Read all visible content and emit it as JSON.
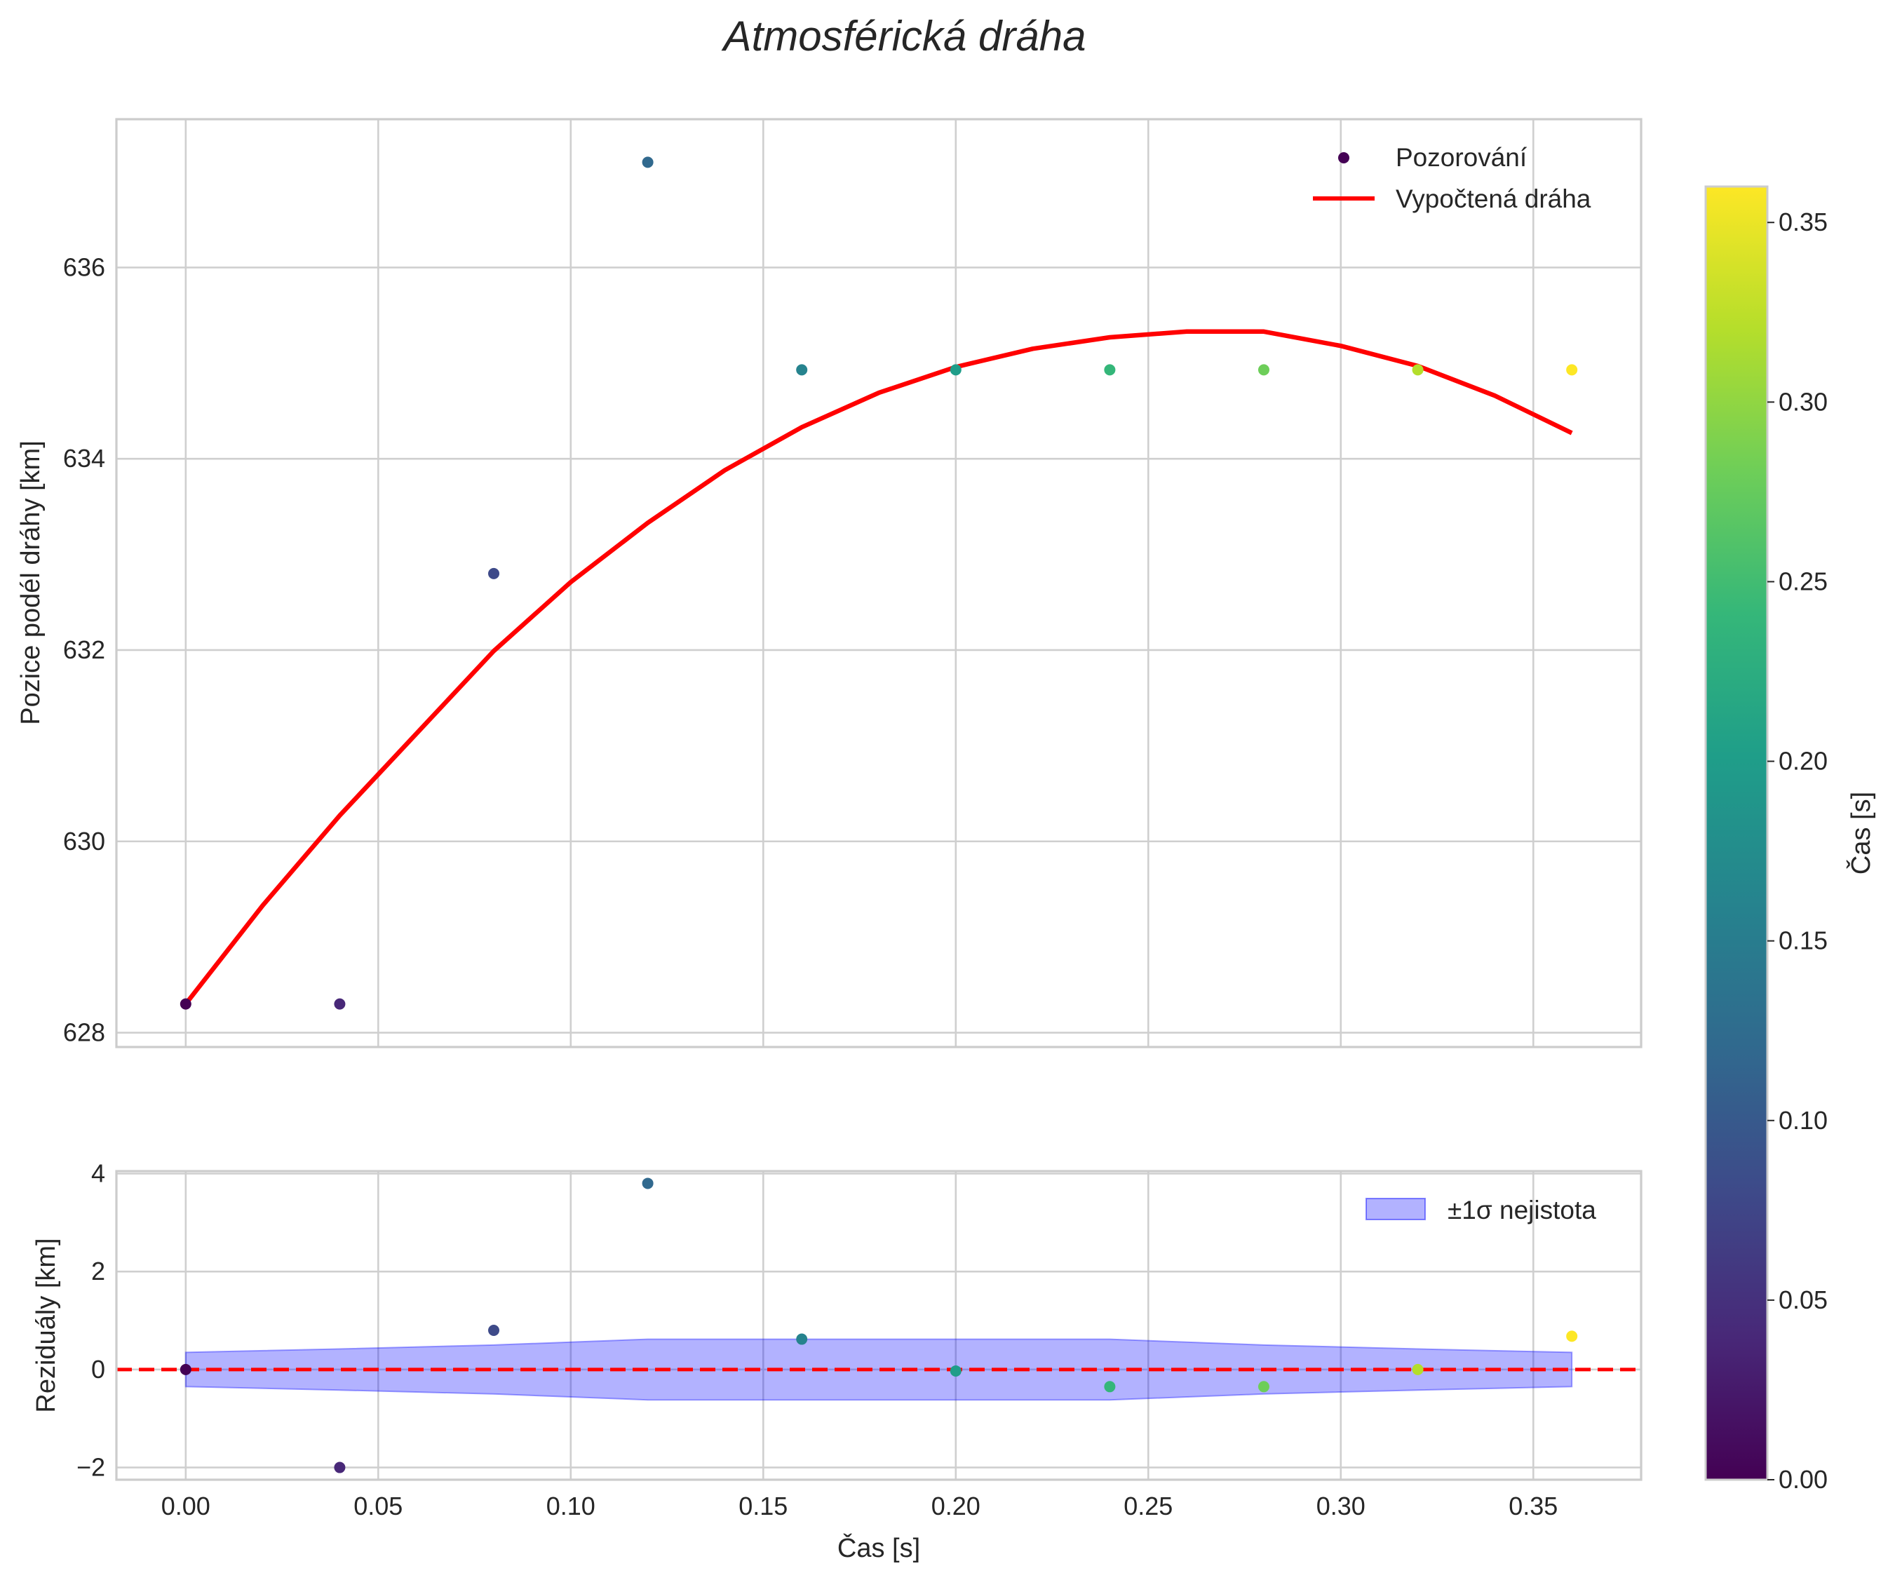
{
  "chart_data": [
    {
      "type": "scatter",
      "title": "Atmosférická dráha",
      "xlabel": "",
      "ylabel": "Pozice podél dráhy [km]",
      "xlim": [
        -0.018,
        0.378
      ],
      "ylim": [
        627.85,
        637.55
      ],
      "xticks": [
        0.0,
        0.05,
        0.1,
        0.15,
        0.2,
        0.25,
        0.3,
        0.35
      ],
      "yticks": [
        628,
        630,
        632,
        634,
        636
      ],
      "ytick_labels": [
        "628",
        "630",
        "632",
        "634",
        "636"
      ],
      "legend": [
        {
          "label": "Pozorování",
          "kind": "marker",
          "color": "#440154"
        },
        {
          "label": "Vypočtená dráha",
          "kind": "line",
          "color": "#ff0000"
        }
      ],
      "series": [
        {
          "name": "Pozorování",
          "x": [
            0.0,
            0.04,
            0.08,
            0.12,
            0.16,
            0.2,
            0.24,
            0.28,
            0.32,
            0.36
          ],
          "y": [
            628.3,
            628.3,
            632.8,
            637.1,
            634.93,
            634.93,
            634.93,
            634.93,
            634.93,
            634.93
          ],
          "color_by": "x"
        },
        {
          "name": "Vypočtená dráha",
          "type": "line",
          "color": "#ff0000",
          "x": [
            0.0,
            0.02,
            0.04,
            0.06,
            0.08,
            0.1,
            0.12,
            0.14,
            0.16,
            0.18,
            0.2,
            0.22,
            0.24,
            0.26,
            0.28,
            0.3,
            0.32,
            0.34,
            0.36
          ],
          "y": [
            628.3,
            629.33,
            630.27,
            631.13,
            631.99,
            632.71,
            633.33,
            633.88,
            634.33,
            634.69,
            634.96,
            635.15,
            635.27,
            635.33,
            635.33,
            635.18,
            634.97,
            634.66,
            634.27
          ]
        }
      ]
    },
    {
      "type": "scatter",
      "xlabel": "Čas [s]",
      "ylabel": "Reziduály [km]",
      "xlim": [
        -0.018,
        0.378
      ],
      "ylim": [
        -2.25,
        4.05
      ],
      "xticks": [
        0.0,
        0.05,
        0.1,
        0.15,
        0.2,
        0.25,
        0.3,
        0.35
      ],
      "xtick_labels": [
        "0.00",
        "0.05",
        "0.10",
        "0.15",
        "0.20",
        "0.25",
        "0.30",
        "0.35"
      ],
      "yticks": [
        -2,
        0,
        2,
        4
      ],
      "ytick_labels": [
        "−2",
        "0",
        "2",
        "4"
      ],
      "legend": [
        {
          "label": "±1σ nejistota",
          "kind": "patch",
          "color": "#0000ff"
        }
      ],
      "reference_line": {
        "y": 0,
        "color": "#ff0000",
        "style": "dashed"
      },
      "band": {
        "name": "±1σ nejistota",
        "x": [
          0.0,
          0.04,
          0.08,
          0.12,
          0.16,
          0.2,
          0.24,
          0.28,
          0.32,
          0.36
        ],
        "half_width": [
          0.35,
          0.42,
          0.5,
          0.62,
          0.62,
          0.62,
          0.62,
          0.5,
          0.42,
          0.35
        ],
        "color": "#0000ff",
        "alpha": 0.3
      },
      "series": [
        {
          "name": "Reziduály",
          "x": [
            0.0,
            0.04,
            0.08,
            0.12,
            0.16,
            0.2,
            0.24,
            0.28,
            0.32,
            0.36
          ],
          "y": [
            0.0,
            -2.0,
            0.8,
            3.8,
            0.62,
            -0.03,
            -0.35,
            -0.35,
            0.0,
            0.68
          ],
          "color_by": "x"
        }
      ]
    }
  ],
  "colorbar": {
    "label": "Čas [s]",
    "colormap": "viridis",
    "range": [
      0.0,
      0.36
    ],
    "ticks": [
      0.0,
      0.05,
      0.1,
      0.15,
      0.2,
      0.25,
      0.3,
      0.35
    ],
    "tick_labels": [
      "0.00",
      "0.05",
      "0.10",
      "0.15",
      "0.20",
      "0.25",
      "0.30",
      "0.35"
    ]
  },
  "colors": {
    "fit_line": "#ff0000",
    "zero_line": "#ff0000",
    "band": "#0000ff",
    "grid": "#cfcfcf",
    "frame": "#cccccc"
  }
}
